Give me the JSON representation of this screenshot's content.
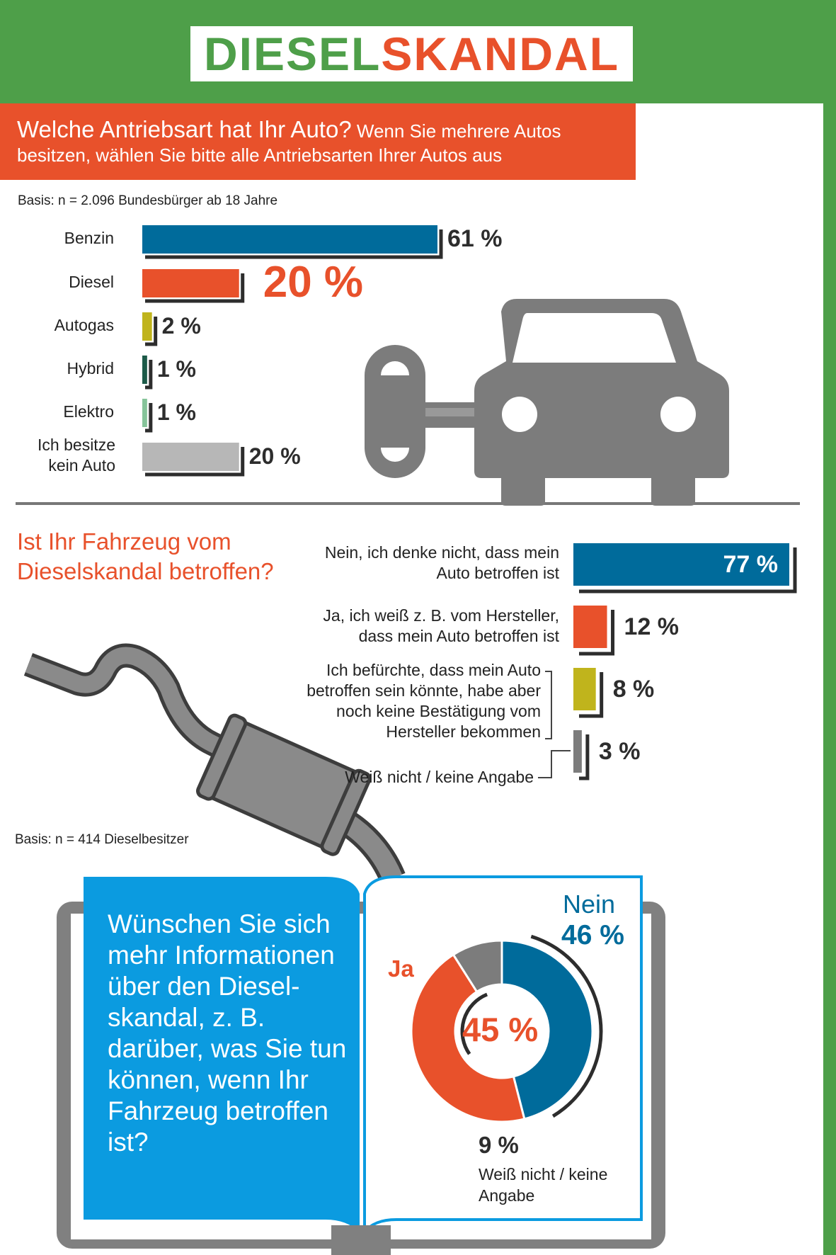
{
  "header": {
    "logo_part1": "DIESEL",
    "logo_part2": "SKANDAL"
  },
  "colors": {
    "green": "#4e9f49",
    "orange": "#e8512b",
    "blue": "#006b9b",
    "yellow": "#c0b41c",
    "dark_green": "#1c5a48",
    "light_green": "#86c49a",
    "light_gray": "#b7b7b7",
    "gray": "#7c7c7c",
    "cyan": "#0b9be0"
  },
  "section1": {
    "question_lead": "Welche Antriebsart hat Ihr Auto?",
    "question_rest": "Wenn Sie mehrere Autos besitzen, wählen Sie bitte alle Antriebsarten Ihrer Autos aus",
    "basis": "Basis: n = 2.096 Bundesbürger ab 18 Jahre"
  },
  "section2": {
    "question": "Ist Ihr Fahrzeug vom Dieselskandal betroffen?",
    "basis": "Basis: n = 414 Dieselbesitzer"
  },
  "section3": {
    "question": "Wünschen Sie sich mehr Informationen über den Diesel-skandal, z. B. darüber, was Sie tun können, wenn Ihr Fahrzeug betroffen ist?"
  },
  "chart_data": [
    {
      "type": "bar",
      "orientation": "horizontal",
      "categories": [
        "Benzin",
        "Diesel",
        "Autogas",
        "Hybrid",
        "Elektro",
        "Ich besitze kein Auto"
      ],
      "values": [
        61,
        20,
        2,
        1,
        1,
        20
      ],
      "value_labels": [
        "61 %",
        "20 %",
        "2 %",
        "1 %",
        "1 %",
        "20 %"
      ],
      "colors": [
        "#006b9b",
        "#e8512b",
        "#c0b41c",
        "#1c5a48",
        "#86c49a",
        "#b7b7b7"
      ],
      "unit": "%"
    },
    {
      "type": "bar",
      "orientation": "horizontal",
      "categories": [
        "Nein, ich denke nicht, dass mein Auto betroffen ist",
        "Ja, ich weiß z. B. vom Hersteller, dass mein Auto betroffen ist",
        "Ich befürchte, dass mein Auto betroffen sein könnte, habe aber noch keine Bestätigung vom Hersteller bekommen",
        "Weiß nicht / keine Angabe"
      ],
      "values": [
        77,
        12,
        8,
        3
      ],
      "value_labels": [
        "77 %",
        "12 %",
        "8 %",
        "3 %"
      ],
      "colors": [
        "#006b9b",
        "#e8512b",
        "#c0b41c",
        "#7c7c7c"
      ],
      "unit": "%"
    },
    {
      "type": "pie",
      "style": "donut",
      "labels": [
        "Nein",
        "Ja",
        "Weiß nicht / keine Angabe"
      ],
      "values": [
        46,
        45,
        9
      ],
      "value_labels": [
        "46 %",
        "45 %",
        "9 %"
      ],
      "colors": [
        "#006b9b",
        "#e8512b",
        "#7c7c7c"
      ]
    }
  ]
}
